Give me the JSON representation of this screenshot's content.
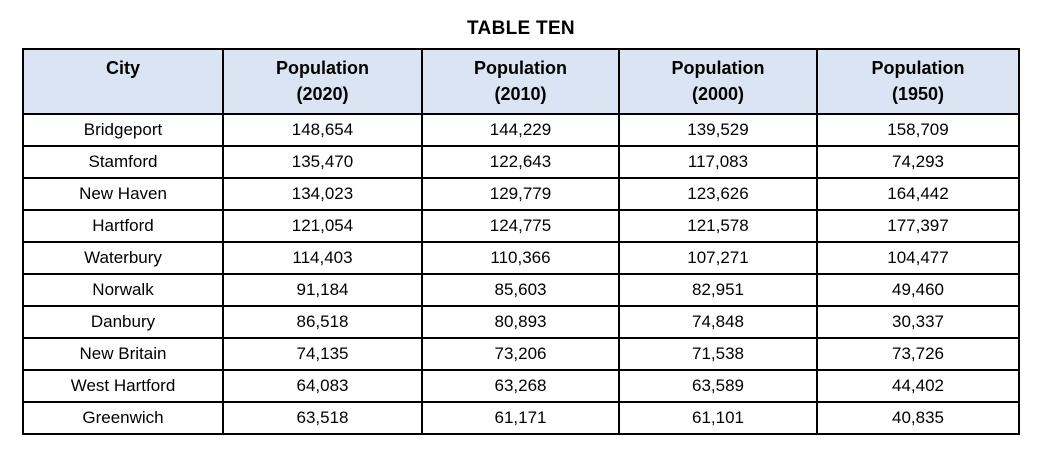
{
  "page": {
    "background_color": "#ffffff",
    "text_color": "#000000"
  },
  "title": "TABLE TEN",
  "table": {
    "header_background_color": "#dbe4f2",
    "border_color": "#000000",
    "headers": [
      "City",
      "Population\n(2020)",
      "Population\n(2010)",
      "Population\n(2000)",
      "Population\n(1950)"
    ],
    "rows": [
      [
        "Bridgeport",
        "148,654",
        "144,229",
        "139,529",
        "158,709"
      ],
      [
        "Stamford",
        "135,470",
        "122,643",
        "117,083",
        "74,293"
      ],
      [
        "New Haven",
        "134,023",
        "129,779",
        "123,626",
        "164,442"
      ],
      [
        "Hartford",
        "121,054",
        "124,775",
        "121,578",
        "177,397"
      ],
      [
        "Waterbury",
        "114,403",
        "110,366",
        "107,271",
        "104,477"
      ],
      [
        "Norwalk",
        "91,184",
        "85,603",
        "82,951",
        "49,460"
      ],
      [
        "Danbury",
        "86,518",
        "80,893",
        "74,848",
        "30,337"
      ],
      [
        "New Britain",
        "74,135",
        "73,206",
        "71,538",
        "73,726"
      ],
      [
        "West Hartford",
        "64,083",
        "63,268",
        "63,589",
        "44,402"
      ],
      [
        "Greenwich",
        "63,518",
        "61,171",
        "61,101",
        "40,835"
      ]
    ]
  }
}
